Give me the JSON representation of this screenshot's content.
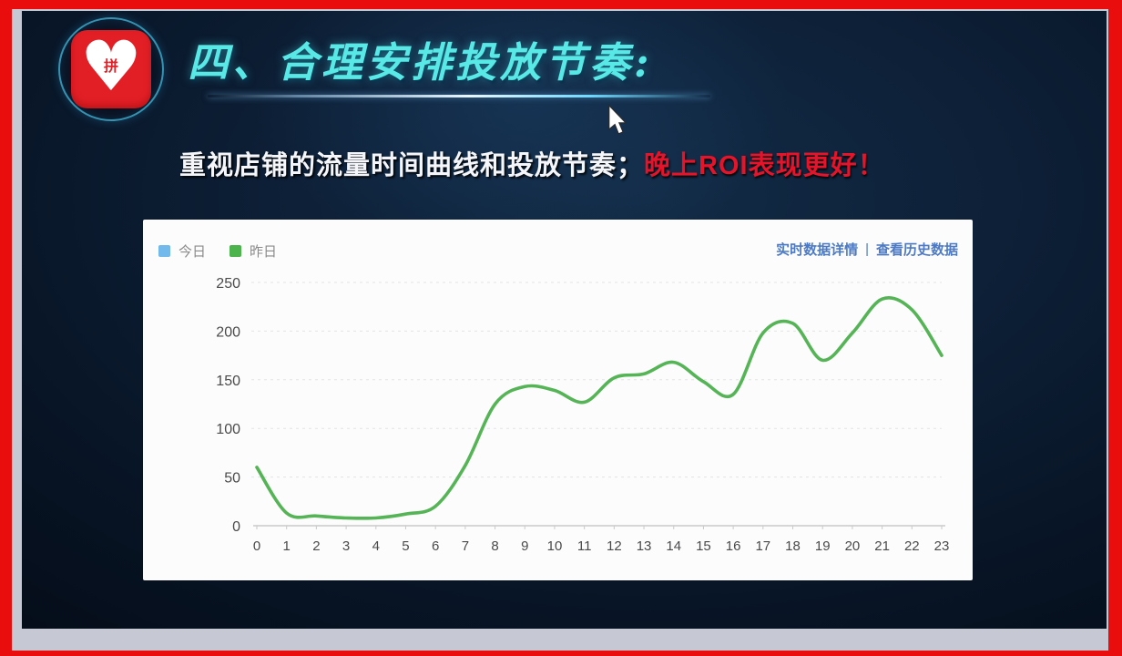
{
  "slide": {
    "logo_glyph": "拼",
    "title": "四、合理安排投放节奏:",
    "subtitle": {
      "main": "重视店铺的流量时间曲线和投放节奏；",
      "highlight": "晚上ROI表现更好！"
    },
    "accent_colors": {
      "title_cyan": "#58e9e6",
      "highlight_red": "#e5142a",
      "frame_red": "#e90d0d",
      "logo_red": "#e31f26"
    }
  },
  "panel": {
    "legend": [
      {
        "label": "今日",
        "color": "#74b9ec"
      },
      {
        "label": "昨日",
        "color": "#4db34d"
      }
    ],
    "links": [
      {
        "label": "实时数据详情"
      },
      {
        "label": "查看历史数据"
      }
    ],
    "links_divider": "|",
    "link_color": "#4d7ac5"
  },
  "chart_data": {
    "type": "line",
    "title": "",
    "xlabel": "",
    "ylabel": "",
    "x": [
      0,
      1,
      2,
      3,
      4,
      5,
      6,
      7,
      8,
      9,
      10,
      11,
      12,
      13,
      14,
      15,
      16,
      17,
      18,
      19,
      20,
      21,
      22,
      23
    ],
    "xticks": [
      0,
      1,
      2,
      3,
      4,
      5,
      6,
      7,
      8,
      9,
      10,
      11,
      12,
      13,
      14,
      15,
      16,
      17,
      18,
      19,
      20,
      21,
      22,
      23
    ],
    "ylim": [
      0,
      250
    ],
    "yticks": [
      0,
      50,
      100,
      150,
      200,
      250
    ],
    "grid": "horizontal-dashed",
    "legend_position": "top-left",
    "series": [
      {
        "name": "今日",
        "color": "#74b9ec",
        "values": []
      },
      {
        "name": "昨日",
        "color": "#55b455",
        "values": [
          60,
          13,
          10,
          8,
          8,
          12,
          20,
          62,
          125,
          143,
          139,
          127,
          152,
          156,
          168,
          148,
          135,
          198,
          208,
          170,
          198,
          233,
          222,
          175
        ]
      }
    ]
  }
}
